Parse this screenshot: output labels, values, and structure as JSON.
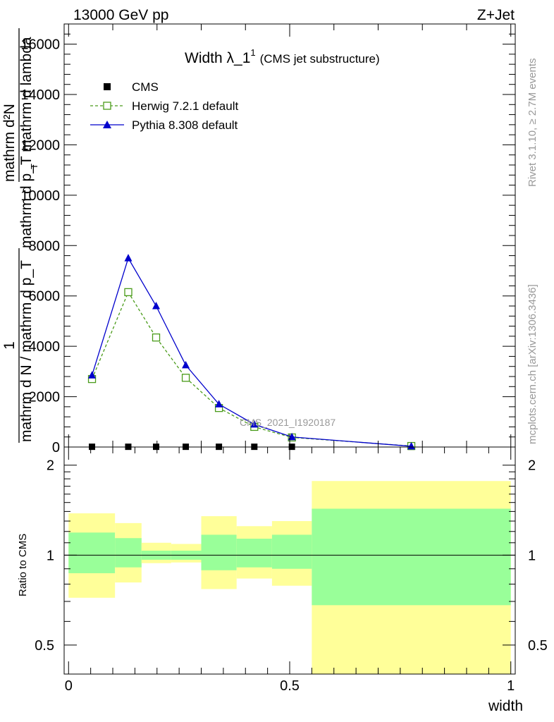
{
  "header": {
    "left": "13000 GeV pp",
    "right": "Z+Jet"
  },
  "side_labels": {
    "rivet": "Rivet 3.1.10, ≥ 2.7M events",
    "mcplots": "mcplots.cern.ch [arXiv:1306.3436]"
  },
  "watermark": "CMS_2021_I1920187",
  "chart_data": [
    {
      "type": "line",
      "title_main": "Width λ_1",
      "title_sup": "1",
      "title_sub": "(CMS jet substructure)",
      "ylabel_numerator_line1": "mathrm d²N",
      "ylabel_numerator_line2": "mathrm d p_T mathrm d lambda",
      "ylabel_unit_T": "T",
      "ylabel_fraction_one": "1",
      "ylabel_denominator": "mathrm d N / mathrm d p_T",
      "ylim": [
        0,
        16800
      ],
      "yticks": [
        0,
        2000,
        4000,
        6000,
        8000,
        10000,
        12000,
        14000,
        16000
      ],
      "ytick_labels": [
        "0",
        "2000",
        "4000",
        "6000",
        "8000",
        "10000",
        "12000",
        "14000",
        "16000"
      ],
      "xlim": [
        -0.01,
        1.01
      ],
      "legend": {
        "placement": "top-left",
        "entries": [
          "CMS",
          "Herwig 7.2.1 default",
          "Pythia 8.308 default"
        ]
      },
      "series": [
        {
          "name": "CMS",
          "color": "#000000",
          "marker": "square-filled",
          "x": [
            0.053,
            0.135,
            0.198,
            0.265,
            0.34,
            0.42,
            0.505,
            0.775
          ],
          "y": [
            10,
            10,
            10,
            10,
            10,
            10,
            10,
            10
          ]
        },
        {
          "name": "Herwig 7.2.1 default",
          "color": "#4a9b1a",
          "marker": "square-open",
          "line": "dashed",
          "x": [
            0.053,
            0.135,
            0.198,
            0.265,
            0.34,
            0.42,
            0.505,
            0.775
          ],
          "y": [
            2700,
            6150,
            4350,
            2750,
            1550,
            800,
            380,
            40
          ]
        },
        {
          "name": "Pythia 8.308 default",
          "color": "#0000cc",
          "marker": "triangle-filled",
          "line": "solid",
          "x": [
            0.053,
            0.135,
            0.198,
            0.265,
            0.34,
            0.42,
            0.505,
            0.775
          ],
          "y": [
            2850,
            7500,
            5600,
            3250,
            1700,
            900,
            400,
            30
          ]
        }
      ]
    },
    {
      "type": "area",
      "ylabel": "Ratio to CMS",
      "xlabel": "width",
      "scale": "log",
      "ylim": [
        0.4,
        2.3
      ],
      "yticks": [
        0.5,
        1,
        2
      ],
      "ytick_labels": [
        "0.5",
        "1",
        "2"
      ],
      "xticks": [
        0,
        0.5,
        1
      ],
      "xtick_labels": [
        "0",
        "0.5",
        "1"
      ],
      "xlim": [
        -0.01,
        1.01
      ],
      "bands": [
        {
          "x0": 0.0,
          "x1": 0.105,
          "inner": [
            0.87,
            1.19
          ],
          "outer": [
            0.72,
            1.38
          ]
        },
        {
          "x0": 0.105,
          "x1": 0.165,
          "inner": [
            0.91,
            1.14
          ],
          "outer": [
            0.81,
            1.28
          ]
        },
        {
          "x0": 0.165,
          "x1": 0.232,
          "inner": [
            0.965,
            1.035
          ],
          "outer": [
            0.94,
            1.1
          ]
        },
        {
          "x0": 0.232,
          "x1": 0.3,
          "inner": [
            0.965,
            1.035
          ],
          "outer": [
            0.945,
            1.09
          ]
        },
        {
          "x0": 0.3,
          "x1": 0.38,
          "inner": [
            0.89,
            1.17
          ],
          "outer": [
            0.77,
            1.35
          ]
        },
        {
          "x0": 0.38,
          "x1": 0.46,
          "inner": [
            0.91,
            1.135
          ],
          "outer": [
            0.835,
            1.25
          ]
        },
        {
          "x0": 0.46,
          "x1": 0.55,
          "inner": [
            0.9,
            1.17
          ],
          "outer": [
            0.79,
            1.3
          ]
        },
        {
          "x0": 0.55,
          "x1": 1.0,
          "inner": [
            0.68,
            1.43
          ],
          "outer": [
            0.35,
            1.77
          ]
        }
      ],
      "band_colors": {
        "inner": "#99ff99",
        "outer": "#ffff99"
      }
    }
  ]
}
